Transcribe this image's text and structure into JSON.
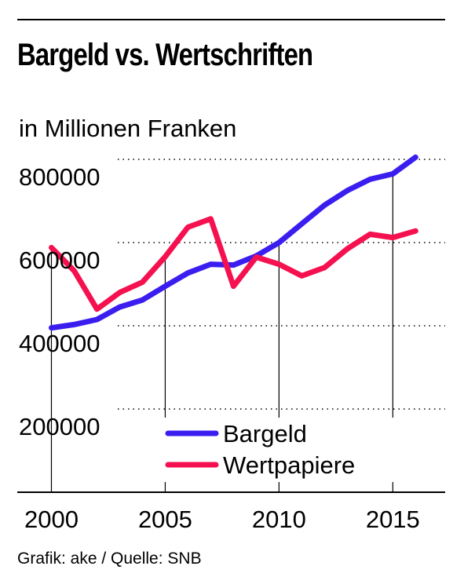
{
  "chart_data": {
    "type": "line",
    "title": "Bargeld vs. Wertschriften",
    "subtitle": "in Millionen Franken",
    "xlabel": "",
    "ylabel": "",
    "ylim": [
      0,
      800000
    ],
    "xlim": [
      1998.5,
      2017.3
    ],
    "y_ticks": [
      200000,
      400000,
      600000,
      800000
    ],
    "y_tick_labels": [
      "200000",
      "400000",
      "600000",
      "800000"
    ],
    "x_ticks": [
      2000,
      2005,
      2010,
      2015
    ],
    "x_tick_labels": [
      "2000",
      "2005",
      "2010",
      "2015"
    ],
    "grid": "horizontal dotted",
    "legend_position": "bottom-center",
    "x": [
      2000,
      2001,
      2002,
      2003,
      2004,
      2005,
      2006,
      2007,
      2008,
      2009,
      2010,
      2011,
      2012,
      2013,
      2014,
      2015,
      2016
    ],
    "series": [
      {
        "name": "Bargeld",
        "color": "#3a1ef0",
        "values": [
          395000,
          403000,
          415000,
          445000,
          462000,
          495000,
          527000,
          548000,
          546000,
          568000,
          600000,
          645000,
          690000,
          725000,
          752000,
          765000,
          805000
        ]
      },
      {
        "name": "Wertpapiere",
        "color": "#f5114f",
        "values": [
          588000,
          532000,
          440000,
          480000,
          505000,
          566000,
          637000,
          657000,
          495000,
          565000,
          548000,
          520000,
          540000,
          585000,
          620000,
          612000,
          628000
        ]
      }
    ]
  },
  "footer": "Grafik: ake / Quelle: SNB"
}
